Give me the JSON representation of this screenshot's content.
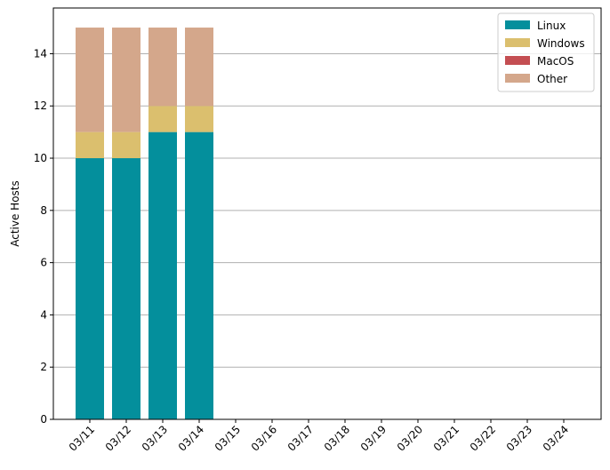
{
  "chart_data": {
    "type": "bar",
    "stacked": true,
    "categories": [
      "03/11",
      "03/12",
      "03/13",
      "03/14",
      "03/15",
      "03/16",
      "03/17",
      "03/18",
      "03/19",
      "03/20",
      "03/21",
      "03/22",
      "03/23",
      "03/24"
    ],
    "series": [
      {
        "name": "Linux",
        "color": "#048f9c",
        "values": [
          10,
          10,
          11,
          11,
          0,
          0,
          0,
          0,
          0,
          0,
          0,
          0,
          0,
          0
        ]
      },
      {
        "name": "Windows",
        "color": "#dbbf6e",
        "values": [
          1,
          1,
          1,
          1,
          0,
          0,
          0,
          0,
          0,
          0,
          0,
          0,
          0,
          0
        ]
      },
      {
        "name": "MacOS",
        "color": "#c44e52",
        "values": [
          0,
          0,
          0,
          0,
          0,
          0,
          0,
          0,
          0,
          0,
          0,
          0,
          0,
          0
        ]
      },
      {
        "name": "Other",
        "color": "#d4a78b",
        "values": [
          4,
          4,
          3,
          3,
          0,
          0,
          0,
          0,
          0,
          0,
          0,
          0,
          0,
          0
        ]
      }
    ],
    "title": "",
    "xlabel": "",
    "ylabel": "Active Hosts",
    "ylim": [
      0,
      15.75
    ],
    "yticks": [
      0,
      2,
      4,
      6,
      8,
      10,
      12,
      14
    ],
    "grid": "y-major",
    "legend": "top-right"
  }
}
